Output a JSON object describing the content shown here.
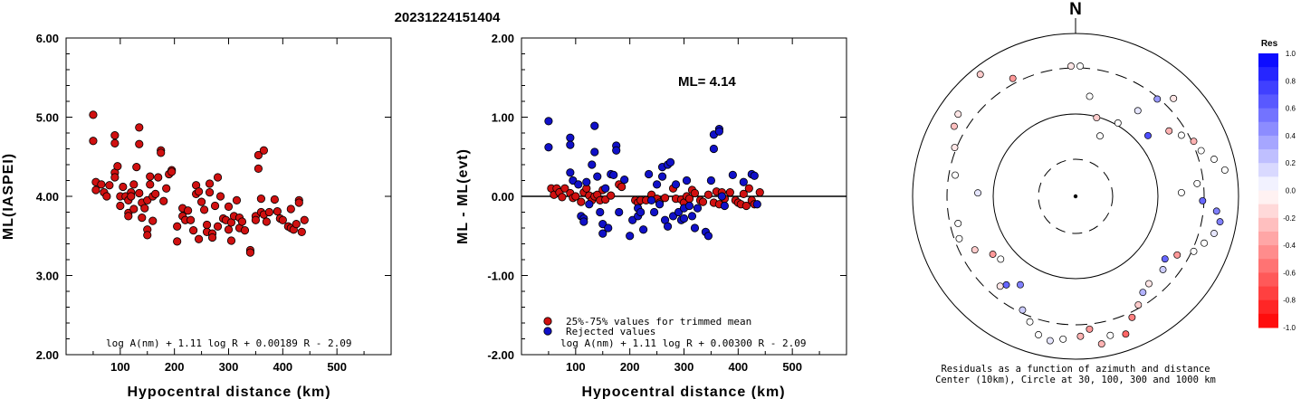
{
  "figure_title": "20231224151404",
  "ml_label": "ML= 4.14",
  "legend": {
    "trimmed": "25%-75% values for trimmed mean",
    "rejected": "Rejected values"
  },
  "polar": {
    "north_label": "N",
    "caption_line1": "Residuals as a function of azimuth and distance",
    "caption_line2": "Center (10km), Circle at 30, 100, 300 and 1000 km"
  },
  "colors": {
    "red_marker": "#d01010",
    "blue_marker": "#1010c8",
    "axis": "#000000"
  },
  "chart_data": [
    {
      "type": "scatter",
      "title": "",
      "xlabel": "Hypocentral distance (km)",
      "ylabel": "ML(IASPEI)",
      "xlim": [
        0,
        600
      ],
      "ylim": [
        2.0,
        6.0
      ],
      "xticks": [
        "100",
        "200",
        "300",
        "400",
        "500"
      ],
      "yticks": [
        "2.00",
        "3.00",
        "4.00",
        "5.00",
        "6.00"
      ],
      "annotation": "log A(nm) + 1.11 log R + 0.00189 R - 2.09",
      "points": [
        [
          50,
          5.03
        ],
        [
          50,
          4.7
        ],
        [
          55,
          4.18
        ],
        [
          55,
          4.08
        ],
        [
          65,
          4.15
        ],
        [
          70,
          4.05
        ],
        [
          75,
          4.0
        ],
        [
          80,
          4.14
        ],
        [
          90,
          4.77
        ],
        [
          90,
          4.67
        ],
        [
          90,
          4.3
        ],
        [
          90,
          4.24
        ],
        [
          95,
          4.38
        ],
        [
          100,
          4.0
        ],
        [
          100,
          3.88
        ],
        [
          105,
          4.12
        ],
        [
          110,
          4.0
        ],
        [
          115,
          3.95
        ],
        [
          115,
          3.79
        ],
        [
          115,
          3.75
        ],
        [
          120,
          4.05
        ],
        [
          120,
          4.0
        ],
        [
          125,
          4.15
        ],
        [
          125,
          3.84
        ],
        [
          135,
          4.87
        ],
        [
          135,
          4.66
        ],
        [
          130,
          4.37
        ],
        [
          135,
          4.04
        ],
        [
          140,
          3.92
        ],
        [
          140,
          3.73
        ],
        [
          145,
          3.85
        ],
        [
          150,
          3.95
        ],
        [
          150,
          3.58
        ],
        [
          150,
          3.51
        ],
        [
          155,
          4.25
        ],
        [
          155,
          4.15
        ],
        [
          160,
          4.0
        ],
        [
          160,
          3.69
        ],
        [
          165,
          4.03
        ],
        [
          170,
          4.24
        ],
        [
          175,
          4.58
        ],
        [
          175,
          4.55
        ],
        [
          180,
          3.94
        ],
        [
          185,
          4.1
        ],
        [
          190,
          4.28
        ],
        [
          195,
          4.33
        ],
        [
          195,
          4.31
        ],
        [
          205,
          3.62
        ],
        [
          205,
          3.43
        ],
        [
          215,
          3.85
        ],
        [
          215,
          3.75
        ],
        [
          220,
          3.7
        ],
        [
          225,
          3.82
        ],
        [
          230,
          3.7
        ],
        [
          235,
          3.57
        ],
        [
          240,
          4.14
        ],
        [
          240,
          4.03
        ],
        [
          245,
          4.06
        ],
        [
          245,
          3.46
        ],
        [
          250,
          3.93
        ],
        [
          255,
          3.83
        ],
        [
          260,
          3.64
        ],
        [
          260,
          3.55
        ],
        [
          265,
          4.16
        ],
        [
          265,
          4.05
        ],
        [
          270,
          3.53
        ],
        [
          270,
          3.48
        ],
        [
          275,
          3.88
        ],
        [
          280,
          4.24
        ],
        [
          280,
          3.62
        ],
        [
          285,
          4.0
        ],
        [
          290,
          3.72
        ],
        [
          295,
          3.7
        ],
        [
          300,
          3.87
        ],
        [
          300,
          3.58
        ],
        [
          305,
          3.67
        ],
        [
          305,
          3.44
        ],
        [
          310,
          3.75
        ],
        [
          315,
          3.95
        ],
        [
          320,
          3.73
        ],
        [
          320,
          3.6
        ],
        [
          325,
          3.68
        ],
        [
          330,
          3.57
        ],
        [
          340,
          3.32
        ],
        [
          340,
          3.29
        ],
        [
          350,
          3.75
        ],
        [
          350,
          3.7
        ],
        [
          355,
          4.52
        ],
        [
          355,
          4.35
        ],
        [
          360,
          3.97
        ],
        [
          360,
          3.8
        ],
        [
          365,
          4.58
        ],
        [
          365,
          3.77
        ],
        [
          370,
          3.68
        ],
        [
          375,
          3.8
        ],
        [
          385,
          3.96
        ],
        [
          390,
          3.81
        ],
        [
          395,
          3.72
        ],
        [
          400,
          3.7
        ],
        [
          410,
          3.62
        ],
        [
          415,
          3.84
        ],
        [
          415,
          3.6
        ],
        [
          420,
          3.58
        ],
        [
          425,
          3.65
        ],
        [
          430,
          3.95
        ],
        [
          430,
          3.92
        ],
        [
          435,
          3.55
        ],
        [
          440,
          3.7
        ]
      ]
    },
    {
      "type": "scatter",
      "title": "",
      "xlabel": "Hypocentral distance (km)",
      "ylabel": "ML - ML(evt)",
      "xlim": [
        0,
        600
      ],
      "ylim": [
        -2.0,
        2.0
      ],
      "xticks": [
        "100",
        "200",
        "300",
        "400",
        "500"
      ],
      "yticks": [
        "-2.00",
        "-1.00",
        "0.00",
        "1.00",
        "2.00"
      ],
      "reference_line": 0.0,
      "annotation": "log A(nm) + 1.11 log R + 0.00300 R - 2.09",
      "series": [
        {
          "name": "25%-75% values for trimmed mean",
          "color": "#d01010",
          "points": [
            [
              55,
              0.1
            ],
            [
              60,
              0.02
            ],
            [
              65,
              0.1
            ],
            [
              70,
              0.05
            ],
            [
              75,
              -0.01
            ],
            [
              80,
              0.1
            ],
            [
              90,
              0.04
            ],
            [
              95,
              -0.02
            ],
            [
              100,
              0.0
            ],
            [
              110,
              -0.07
            ],
            [
              115,
              0.05
            ],
            [
              120,
              0.1
            ],
            [
              125,
              0.01
            ],
            [
              130,
              -0.05
            ],
            [
              135,
              0.0
            ],
            [
              140,
              0.02
            ],
            [
              145,
              -0.05
            ],
            [
              150,
              0.08
            ],
            [
              155,
              -0.04
            ],
            [
              165,
              0.01
            ],
            [
              180,
              0.15
            ],
            [
              185,
              0.12
            ],
            [
              210,
              -0.05
            ],
            [
              215,
              -0.08
            ],
            [
              220,
              -0.05
            ],
            [
              230,
              -0.05
            ],
            [
              240,
              0.02
            ],
            [
              250,
              -0.03
            ],
            [
              255,
              -0.08
            ],
            [
              265,
              -0.02
            ],
            [
              280,
              0.1
            ],
            [
              285,
              -0.03
            ],
            [
              295,
              -0.04
            ],
            [
              300,
              -0.08
            ],
            [
              305,
              0.0
            ],
            [
              310,
              -0.03
            ],
            [
              315,
              0.08
            ],
            [
              320,
              0.04
            ],
            [
              330,
              -0.05
            ],
            [
              335,
              -0.07
            ],
            [
              345,
              0.02
            ],
            [
              355,
              -0.08
            ],
            [
              360,
              0.06
            ],
            [
              365,
              -0.1
            ],
            [
              370,
              0.05
            ],
            [
              375,
              -0.03
            ],
            [
              385,
              0.05
            ],
            [
              395,
              -0.05
            ],
            [
              400,
              -0.08
            ],
            [
              405,
              -0.1
            ],
            [
              410,
              0.03
            ],
            [
              415,
              -0.12
            ],
            [
              420,
              0.1
            ],
            [
              425,
              -0.05
            ],
            [
              430,
              -0.1
            ],
            [
              440,
              0.05
            ]
          ]
        },
        {
          "name": "Rejected values",
          "color": "#1010c8",
          "points": [
            [
              50,
              0.95
            ],
            [
              50,
              0.62
            ],
            [
              90,
              0.74
            ],
            [
              90,
              0.65
            ],
            [
              90,
              0.3
            ],
            [
              95,
              0.2
            ],
            [
              105,
              0.15
            ],
            [
              110,
              -0.25
            ],
            [
              115,
              -0.28
            ],
            [
              115,
              -0.32
            ],
            [
              120,
              0.18
            ],
            [
              125,
              -0.1
            ],
            [
              130,
              0.4
            ],
            [
              135,
              0.89
            ],
            [
              135,
              0.56
            ],
            [
              140,
              0.25
            ],
            [
              145,
              -0.2
            ],
            [
              150,
              -0.35
            ],
            [
              150,
              -0.47
            ],
            [
              155,
              0.1
            ],
            [
              160,
              -0.4
            ],
            [
              165,
              0.28
            ],
            [
              170,
              0.27
            ],
            [
              175,
              0.64
            ],
            [
              175,
              0.58
            ],
            [
              180,
              -0.2
            ],
            [
              190,
              0.21
            ],
            [
              200,
              -0.5
            ],
            [
              205,
              -0.3
            ],
            [
              215,
              -0.15
            ],
            [
              215,
              -0.25
            ],
            [
              220,
              -0.2
            ],
            [
              225,
              -0.42
            ],
            [
              235,
              0.28
            ],
            [
              240,
              -0.05
            ],
            [
              245,
              -0.2
            ],
            [
              250,
              0.15
            ],
            [
              255,
              -0.1
            ],
            [
              260,
              0.37
            ],
            [
              260,
              0.25
            ],
            [
              265,
              -0.3
            ],
            [
              270,
              0.4
            ],
            [
              270,
              -0.38
            ],
            [
              275,
              0.43
            ],
            [
              280,
              -0.25
            ],
            [
              285,
              0.15
            ],
            [
              290,
              -0.2
            ],
            [
              295,
              -0.3
            ],
            [
              300,
              -0.15
            ],
            [
              300,
              -0.28
            ],
            [
              305,
              0.2
            ],
            [
              310,
              -0.12
            ],
            [
              315,
              -0.25
            ],
            [
              320,
              -0.4
            ],
            [
              325,
              -0.15
            ],
            [
              340,
              -0.45
            ],
            [
              345,
              -0.5
            ],
            [
              350,
              0.2
            ],
            [
              355,
              0.78
            ],
            [
              355,
              0.6
            ],
            [
              365,
              0.85
            ],
            [
              365,
              0.82
            ],
            [
              370,
              0.0
            ],
            [
              375,
              -0.12
            ],
            [
              390,
              0.27
            ],
            [
              410,
              0.18
            ],
            [
              425,
              0.28
            ],
            [
              430,
              0.26
            ],
            [
              435,
              -0.1
            ]
          ]
        }
      ]
    },
    {
      "type": "scatter",
      "title": "",
      "coordinate_system": "polar (azimuth, distance)",
      "colorbar_title": "Res",
      "colorbar_ticks": [
        "1.0",
        "0.8",
        "0.6",
        "0.4",
        "0.2",
        "0.0",
        "-0.2",
        "-0.4",
        "-0.6",
        "-0.8",
        "-1.0"
      ],
      "colorbar_range": [
        -1.0,
        1.0
      ],
      "points_azimuth_normradius_residual": [
        [
          -2,
          0.8,
          -0.1
        ],
        [
          2,
          0.8,
          0.0
        ],
        [
          -28,
          0.82,
          -0.4
        ],
        [
          -38,
          0.95,
          -0.2
        ],
        [
          -55,
          0.88,
          -0.1
        ],
        [
          -60,
          0.86,
          -0.25
        ],
        [
          -68,
          0.8,
          -0.1
        ],
        [
          -80,
          0.75,
          0.0
        ],
        [
          -88,
          0.6,
          0.1
        ],
        [
          -103,
          0.74,
          0.0
        ],
        [
          -110,
          0.76,
          0.0
        ],
        [
          -118,
          0.7,
          -0.2
        ],
        [
          -125,
          0.62,
          -0.4
        ],
        [
          -130,
          0.6,
          0.0
        ],
        [
          -140,
          0.72,
          -0.1
        ],
        [
          -142,
          0.69,
          0.6
        ],
        [
          -148,
          0.64,
          0.5
        ],
        [
          -155,
          0.77,
          0.2
        ],
        [
          -160,
          0.82,
          0.0
        ],
        [
          -165,
          0.88,
          0.0
        ],
        [
          -170,
          0.9,
          0.1
        ],
        [
          -175,
          0.88,
          0.0
        ],
        [
          178,
          0.86,
          -0.3
        ],
        [
          174,
          0.82,
          -0.4
        ],
        [
          170,
          0.92,
          -0.3
        ],
        [
          166,
          0.88,
          0.0
        ],
        [
          160,
          0.9,
          -0.6
        ],
        [
          155,
          0.82,
          -0.5
        ],
        [
          150,
          0.77,
          -0.2
        ],
        [
          145,
          0.72,
          0.3
        ],
        [
          140,
          0.7,
          -0.1
        ],
        [
          130,
          0.7,
          0.2
        ],
        [
          125,
          0.67,
          0.6
        ],
        [
          120,
          0.72,
          -0.4
        ],
        [
          115,
          0.8,
          0.0
        ],
        [
          110,
          0.84,
          0.0
        ],
        [
          105,
          0.88,
          0.1
        ],
        [
          100,
          0.9,
          0.5
        ],
        [
          96,
          0.87,
          0.5
        ],
        [
          92,
          0.78,
          0.6
        ],
        [
          88,
          0.65,
          0.0
        ],
        [
          84,
          0.75,
          0.0
        ],
        [
          80,
          0.93,
          0.0
        ],
        [
          75,
          0.88,
          0.0
        ],
        [
          70,
          0.82,
          0.0
        ],
        [
          65,
          0.8,
          -0.3
        ],
        [
          60,
          0.75,
          0.0
        ],
        [
          55,
          0.7,
          -0.3
        ],
        [
          50,
          0.58,
          0.7
        ],
        [
          45,
          0.85,
          -0.1
        ],
        [
          40,
          0.78,
          0.4
        ],
        [
          36,
          0.65,
          0.1
        ],
        [
          30,
          0.52,
          0.0
        ],
        [
          22,
          0.4,
          0.0
        ],
        [
          15,
          0.5,
          -0.2
        ],
        [
          8,
          0.62,
          0.0
        ]
      ]
    }
  ]
}
